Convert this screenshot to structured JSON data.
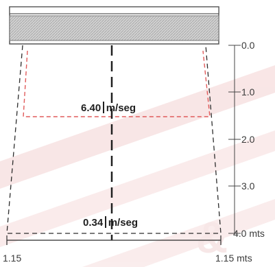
{
  "colors": {
    "background": "#ffffff",
    "watermark": "#f4c9c9",
    "red_dash": "#e05a5a",
    "ink": "#2b2b2b",
    "hatch": "#c9c9c9"
  },
  "scale": {
    "ticks": [
      "0.0",
      "1.0",
      "2.0",
      "3.0",
      "4.0 mts"
    ]
  },
  "velocities": {
    "top_value": "6.40",
    "top_unit": "m/seg",
    "bottom_value": "0.34",
    "bottom_unit": "m/seg"
  },
  "widths": {
    "left": "1.15",
    "right": "1.15 mts"
  },
  "watermark": {
    "text": "&"
  }
}
